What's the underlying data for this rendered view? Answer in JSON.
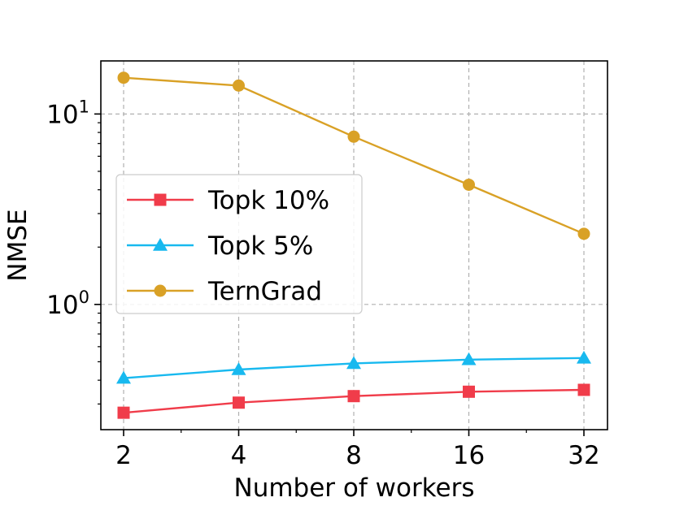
{
  "chart_data": {
    "type": "line",
    "title": "",
    "xlabel": "Number of workers",
    "ylabel": "NMSE",
    "x": [
      2,
      4,
      8,
      16,
      32
    ],
    "x_tick_labels": [
      "2",
      "4",
      "8",
      "16",
      "32"
    ],
    "x_scale": "log2",
    "y_scale": "log10",
    "ylim": [
      0.22,
      19
    ],
    "y_tick_labels": [
      {
        "value": 1,
        "base": "10",
        "exponent": "0"
      },
      {
        "value": 10,
        "base": "10",
        "exponent": "1"
      }
    ],
    "grid": true,
    "legend_position": "center-left",
    "series": [
      {
        "name": "Topk 10%",
        "color": "#f03c4a",
        "marker": "square",
        "values": [
          0.27,
          0.305,
          0.33,
          0.348,
          0.356
        ]
      },
      {
        "name": "Topk 5%",
        "color": "#18b9ef",
        "marker": "triangle",
        "values": [
          0.41,
          0.455,
          0.49,
          0.513,
          0.523
        ]
      },
      {
        "name": "TernGrad",
        "color": "#d9a126",
        "marker": "circle",
        "values": [
          15.5,
          14.1,
          7.6,
          4.25,
          2.35
        ]
      }
    ]
  }
}
